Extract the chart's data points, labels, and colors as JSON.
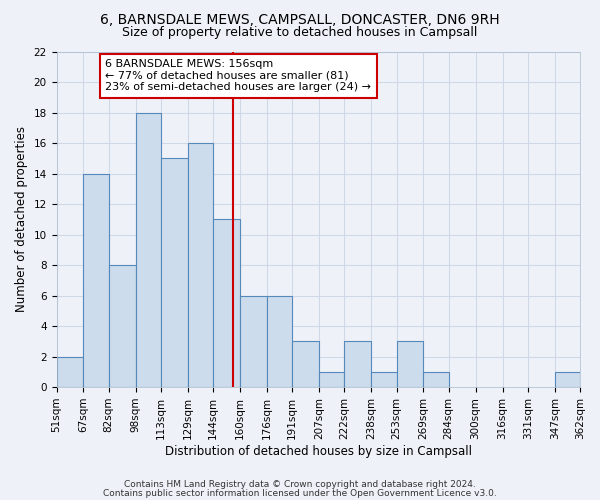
{
  "title1": "6, BARNSDALE MEWS, CAMPSALL, DONCASTER, DN6 9RH",
  "title2": "Size of property relative to detached houses in Campsall",
  "xlabel": "Distribution of detached houses by size in Campsall",
  "ylabel": "Number of detached properties",
  "bin_labels": [
    "51sqm",
    "67sqm",
    "82sqm",
    "98sqm",
    "113sqm",
    "129sqm",
    "144sqm",
    "160sqm",
    "176sqm",
    "191sqm",
    "207sqm",
    "222sqm",
    "238sqm",
    "253sqm",
    "269sqm",
    "284sqm",
    "300sqm",
    "316sqm",
    "331sqm",
    "347sqm",
    "362sqm"
  ],
  "bin_edges": [
    51,
    67,
    82,
    98,
    113,
    129,
    144,
    160,
    176,
    191,
    207,
    222,
    238,
    253,
    269,
    284,
    300,
    316,
    331,
    347,
    362
  ],
  "bar_heights": [
    2,
    14,
    8,
    18,
    15,
    16,
    11,
    6,
    6,
    3,
    1,
    3,
    1,
    3,
    1,
    0,
    0,
    0,
    0,
    1,
    0
  ],
  "bar_color": "#ccdcec",
  "bar_edge_color": "#5588bb",
  "reference_line_x": 156,
  "reference_line_color": "#cc0000",
  "annotation_text": "6 BARNSDALE MEWS: 156sqm\n← 77% of detached houses are smaller (81)\n23% of semi-detached houses are larger (24) →",
  "annotation_box_edge_color": "#cc0000",
  "annotation_box_face_color": "white",
  "ylim": [
    0,
    22
  ],
  "yticks": [
    0,
    2,
    4,
    6,
    8,
    10,
    12,
    14,
    16,
    18,
    20,
    22
  ],
  "footer1": "Contains HM Land Registry data © Crown copyright and database right 2024.",
  "footer2": "Contains public sector information licensed under the Open Government Licence v3.0.",
  "bg_color": "#eef2f8",
  "grid_color": "#d0d8e8",
  "title1_fontsize": 10,
  "title2_fontsize": 9,
  "xlabel_fontsize": 8.5,
  "ylabel_fontsize": 8.5,
  "annotation_fontsize": 8,
  "footer_fontsize": 6.5,
  "tick_fontsize": 7.5
}
